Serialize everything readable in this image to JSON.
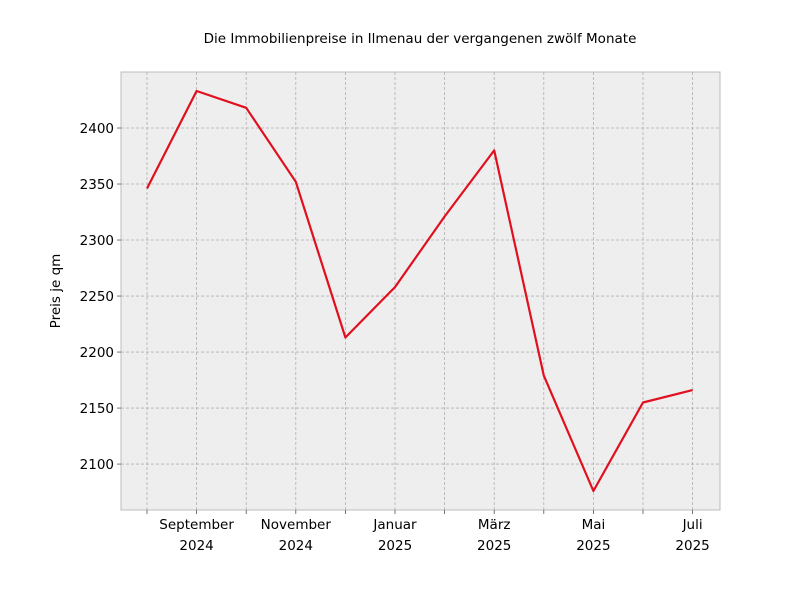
{
  "chart_data": {
    "type": "line",
    "title": "Die Immobilienpreise in Ilmenau der vergangenen zwölf Monate",
    "xlabel": "",
    "ylabel": "Preis je qm",
    "x": [
      "2024-08",
      "2024-09",
      "2024-10",
      "2024-11",
      "2024-12",
      "2025-01",
      "2025-02",
      "2025-03",
      "2025-04",
      "2025-05",
      "2025-06",
      "2025-07"
    ],
    "x_tick_labels": [
      {
        "month": "2024-09",
        "line1": "September",
        "line2": "2024"
      },
      {
        "month": "2024-11",
        "line1": "November",
        "line2": "2024"
      },
      {
        "month": "2025-01",
        "line1": "Januar",
        "line2": "2025"
      },
      {
        "month": "2025-03",
        "line1": "März",
        "line2": "2025"
      },
      {
        "month": "2025-05",
        "line1": "Mai",
        "line2": "2025"
      },
      {
        "month": "2025-07",
        "line1": "Juli",
        "line2": "2025"
      }
    ],
    "series": [
      {
        "values": [
          2346,
          2433,
          2418,
          2352,
          2213,
          2258,
          2321,
          2380,
          2179,
          2076,
          2155,
          2166
        ],
        "color": "#e0101f"
      }
    ],
    "yticks": [
      2100,
      2150,
      2200,
      2250,
      2300,
      2350,
      2400
    ],
    "ylim": [
      2059,
      2450
    ],
    "grid": true,
    "background": "#eeeeee"
  }
}
